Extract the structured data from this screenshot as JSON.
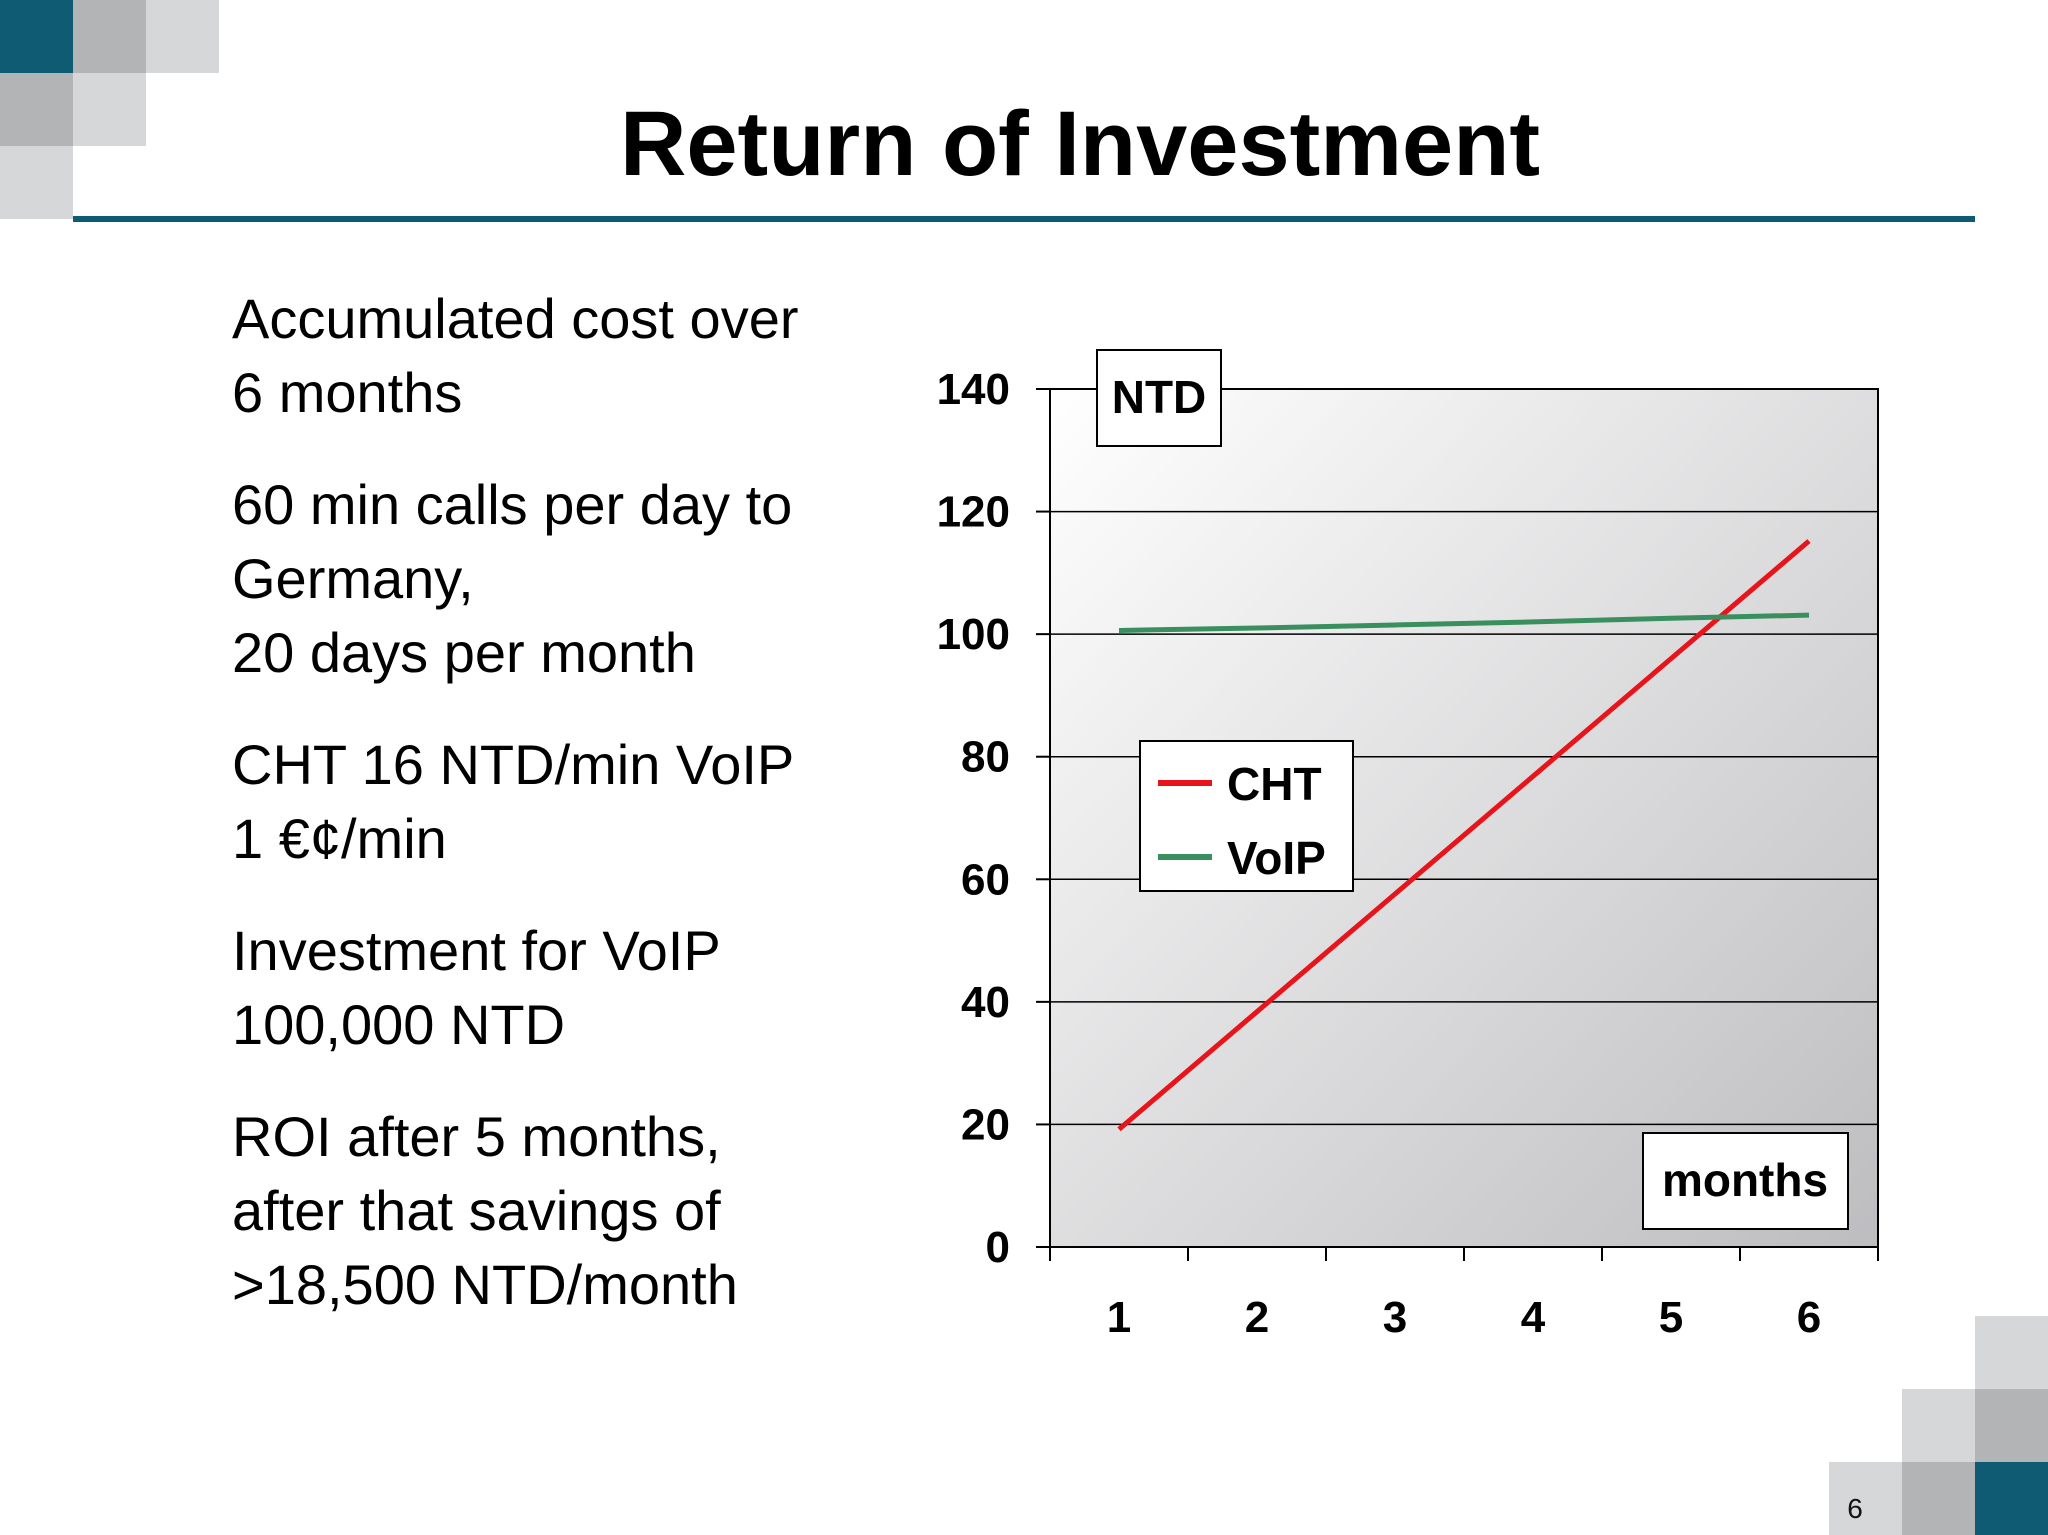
{
  "slide": {
    "title": "Return of Investment",
    "page_number": "6",
    "theme_colors": {
      "accent": "#0f5b73",
      "square_light": "#d6d7d9",
      "square_mid": "#b3b4b6"
    }
  },
  "bullets": [
    {
      "lines": [
        "Accumulated cost over",
        "6 months"
      ]
    },
    {
      "lines": [
        "60 min calls per day to",
        "Germany,",
        "20 days per month"
      ]
    },
    {
      "lines": [
        "CHT 16 NTD/min VoIP",
        "1 €¢/min"
      ]
    },
    {
      "lines": [
        "Investment for VoIP",
        "100,000 NTD"
      ]
    },
    {
      "lines": [
        "ROI after 5 months,",
        "after that savings of",
        ">18,500 NTD/month"
      ]
    }
  ],
  "chart_data": {
    "type": "line",
    "x": [
      1,
      2,
      3,
      4,
      5,
      6
    ],
    "categories": [
      "1",
      "2",
      "3",
      "4",
      "5",
      "6"
    ],
    "series": [
      {
        "name": "CHT",
        "color": "#e8141b",
        "values": [
          19.2,
          38.4,
          57.6,
          76.8,
          96.0,
          115.2
        ]
      },
      {
        "name": "VoIP",
        "color": "#3a8f5f",
        "values": [
          100.6,
          101.0,
          101.5,
          102.0,
          102.6,
          103.1
        ]
      }
    ],
    "ylim": [
      0,
      140
    ],
    "yticks": [
      "0",
      "20",
      "40",
      "60",
      "80",
      "100",
      "120",
      "140"
    ],
    "ylabel": "NTD",
    "xlabel": "months",
    "grid": "horizontal",
    "legend_position": "left-middle"
  }
}
